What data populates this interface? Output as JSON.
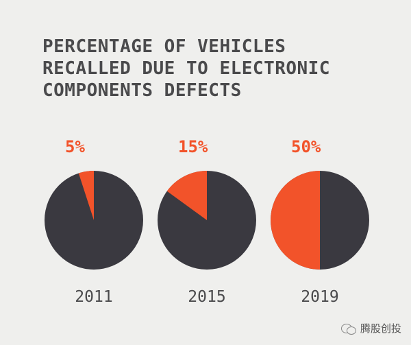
{
  "colors": {
    "background": "#efefed",
    "accent": "#f2532a",
    "dark": "#3a3940",
    "text": "#4a4a4c"
  },
  "chart_data": {
    "type": "pie",
    "title_lines": [
      "PERCENTAGE OF VEHICLES",
      "RECALLED DUE TO ELECTRONIC",
      "COMPONENTS DEFECTS"
    ],
    "charts": [
      {
        "year": "2011",
        "label": "5%",
        "value": 5
      },
      {
        "year": "2015",
        "label": "15%",
        "value": 15
      },
      {
        "year": "2019",
        "label": "50%",
        "value": 50
      }
    ]
  },
  "watermark": {
    "icon": "chat-bubbles-icon",
    "text": "腾股创投"
  }
}
